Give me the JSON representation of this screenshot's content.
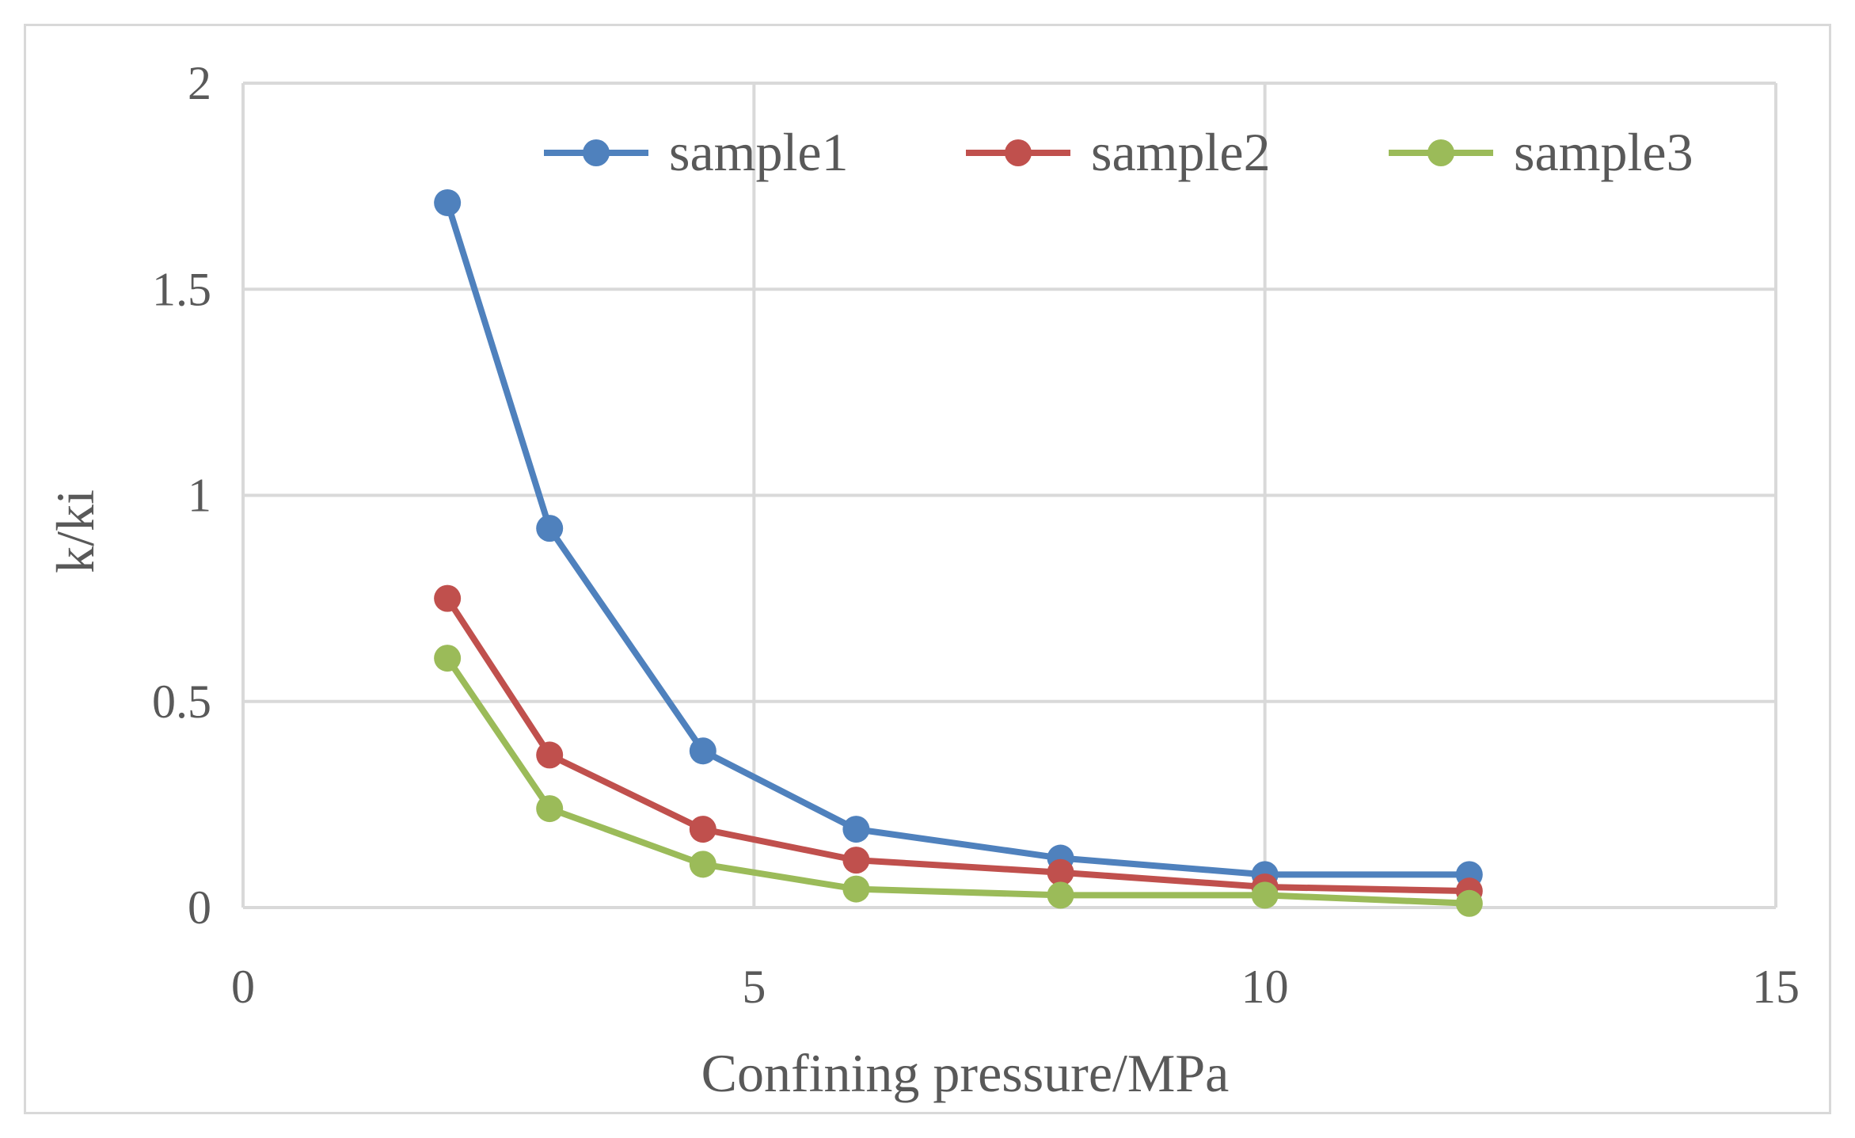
{
  "chart_data": {
    "type": "line",
    "title": "",
    "xlabel": "Confining pressure/MPa",
    "ylabel": "k/ki",
    "xlim": [
      0,
      15
    ],
    "ylim": [
      0,
      2
    ],
    "xticks": [
      "0",
      "5",
      "10",
      "15"
    ],
    "yticks": [
      "0",
      "0.5",
      "1",
      "1.5",
      "2"
    ],
    "grid": true,
    "legend_position": "top",
    "x": [
      2,
      3,
      4.5,
      6,
      8,
      10,
      12
    ],
    "series": [
      {
        "name": "sample1",
        "color": "#4f81bd",
        "values": [
          1.71,
          0.92,
          0.38,
          0.19,
          0.12,
          0.08,
          0.08
        ]
      },
      {
        "name": "sample2",
        "color": "#c0504d",
        "values": [
          0.75,
          0.37,
          0.19,
          0.115,
          0.085,
          0.05,
          0.04
        ]
      },
      {
        "name": "sample3",
        "color": "#9bbb59",
        "values": [
          0.605,
          0.24,
          0.105,
          0.045,
          0.03,
          0.03,
          0.01
        ]
      }
    ]
  }
}
